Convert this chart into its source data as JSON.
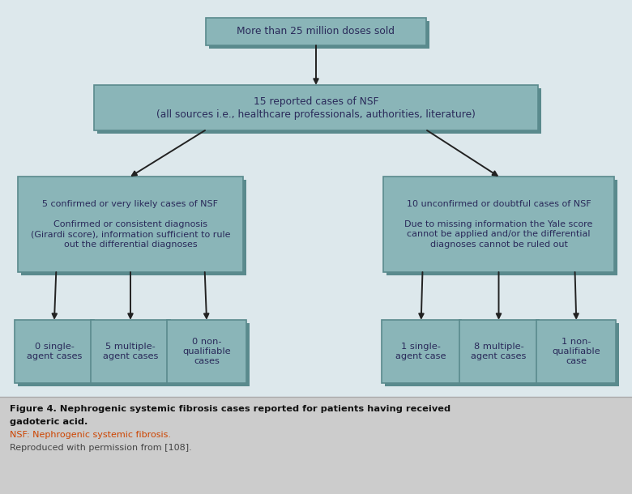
{
  "background_color": "#dde8ec",
  "box_fill_light": "#8ab5b8",
  "box_fill_dark": "#7aa5a8",
  "box_edge_color": "#5a8a8d",
  "box_text_color": "#2a2a5a",
  "arrow_color": "#222222",
  "caption_bg": "#d0d0d0",
  "caption_line1_bold": "Figure 4. Nephrogenic systemic fibrosis cases reported for patients having received",
  "caption_line2_bold": "gadoteric acid.",
  "caption_line3_nsf": "NSF: Nephrogenic systemic fibrosis.",
  "caption_line4": "Reproduced with permission from [108].",
  "box1_text": "More than 25 million doses sold",
  "box2_text": "15 reported cases of NSF\n(all sources i.e., healthcare professionals, authorities, literature)",
  "box3_text": "5 confirmed or very likely cases of NSF\n\nConfirmed or consistent diagnosis\n(Girardi score), information sufficient to rule\nout the differential diagnoses",
  "box4_text": "10 unconfirmed or doubtful cases of NSF\n\nDue to missing information the Yale score\ncannot be applied and/or the differential\ndiagnoses cannot be ruled out",
  "box5_text": "0 single-\nagent cases",
  "box6_text": "5 multiple-\nagent cases",
  "box7_text": "0 non-\nqualifiable\ncases",
  "box8_text": "1 single-\nagent case",
  "box9_text": "8 multiple-\nagent cases",
  "box10_text": "1 non-\nqualifiable\ncase"
}
